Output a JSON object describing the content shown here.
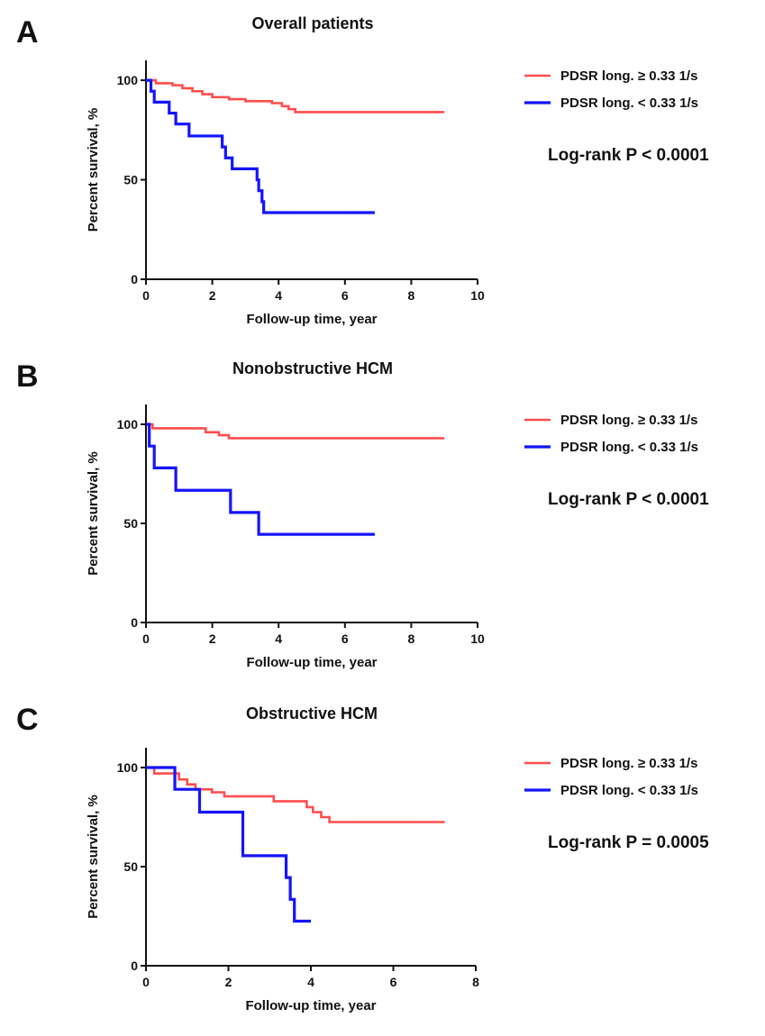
{
  "figure": {
    "colors": {
      "high": "#ff4d4d",
      "low": "#1414ff",
      "axis": "#111111"
    }
  },
  "chart_data": [
    {
      "panel": "A",
      "type": "line",
      "title": "Overall patients",
      "xlabel": "Follow-up time, year",
      "ylabel": "Percent survival, %",
      "xlim": [
        0,
        10
      ],
      "ylim": [
        0,
        110
      ],
      "xticks": [
        0,
        2,
        4,
        6,
        8,
        10
      ],
      "yticks": [
        0,
        50,
        100
      ],
      "legend": [
        "PDSR long. ≥ 0.33 1/s",
        "PDSR long. < 0.33 1/s"
      ],
      "annotation": "Log-rank P < 0.0001",
      "series": [
        {
          "name": "PDSR long. ≥ 0.33 1/s",
          "color": "#ff4d4d",
          "steps": [
            [
              0,
              100
            ],
            [
              0.3,
              98.5
            ],
            [
              0.8,
              97.5
            ],
            [
              1.1,
              96
            ],
            [
              1.4,
              94.5
            ],
            [
              1.7,
              93
            ],
            [
              2.0,
              91.5
            ],
            [
              2.5,
              90.5
            ],
            [
              3.0,
              89.5
            ],
            [
              3.8,
              88.5
            ],
            [
              4.1,
              87
            ],
            [
              4.3,
              85.5
            ],
            [
              4.5,
              84
            ],
            [
              9.0,
              84
            ]
          ]
        },
        {
          "name": "PDSR long. < 0.33 1/s",
          "color": "#1414ff",
          "steps": [
            [
              0,
              100
            ],
            [
              0.15,
              94.5
            ],
            [
              0.25,
              89
            ],
            [
              0.7,
              83.5
            ],
            [
              0.9,
              78
            ],
            [
              1.3,
              72
            ],
            [
              2.3,
              66.5
            ],
            [
              2.4,
              61
            ],
            [
              2.6,
              55.5
            ],
            [
              3.35,
              50
            ],
            [
              3.4,
              44.5
            ],
            [
              3.5,
              39
            ],
            [
              3.55,
              33.5
            ],
            [
              6.9,
              33.5
            ]
          ]
        }
      ]
    },
    {
      "panel": "B",
      "type": "line",
      "title": "Nonobstructive HCM",
      "xlabel": "Follow-up time, year",
      "ylabel": "Percent survival, %",
      "xlim": [
        0,
        10
      ],
      "ylim": [
        0,
        110
      ],
      "xticks": [
        0,
        2,
        4,
        6,
        8,
        10
      ],
      "yticks": [
        0,
        50,
        100
      ],
      "legend": [
        "PDSR long. ≥ 0.33 1/s",
        "PDSR long. < 0.33 1/s"
      ],
      "annotation": "Log-rank P < 0.0001",
      "series": [
        {
          "name": "PDSR long. ≥ 0.33 1/s",
          "color": "#ff4d4d",
          "steps": [
            [
              0,
              100
            ],
            [
              0.2,
              98
            ],
            [
              1.8,
              96
            ],
            [
              2.2,
              94.5
            ],
            [
              2.5,
              93
            ],
            [
              9.0,
              93
            ]
          ]
        },
        {
          "name": "PDSR long. < 0.33 1/s",
          "color": "#1414ff",
          "steps": [
            [
              0,
              100
            ],
            [
              0.1,
              89
            ],
            [
              0.25,
              78
            ],
            [
              0.9,
              66.7
            ],
            [
              2.55,
              55.5
            ],
            [
              3.4,
              44.5
            ],
            [
              6.9,
              44.5
            ]
          ]
        }
      ]
    },
    {
      "panel": "C",
      "type": "line",
      "title": "Obstructive HCM",
      "xlabel": "Follow-up time, year",
      "ylabel": "Percent survival, %",
      "xlim": [
        0,
        8
      ],
      "ylim": [
        0,
        110
      ],
      "xticks": [
        0,
        2,
        4,
        6,
        8
      ],
      "yticks": [
        0,
        50,
        100
      ],
      "legend": [
        "PDSR long. ≥ 0.33 1/s",
        "PDSR long. < 0.33 1/s"
      ],
      "annotation": "Log-rank P = 0.0005",
      "series": [
        {
          "name": "PDSR long. ≥ 0.33 1/s",
          "color": "#ff4d4d",
          "steps": [
            [
              0,
              100
            ],
            [
              0.2,
              97
            ],
            [
              0.8,
              94
            ],
            [
              1.0,
              91.5
            ],
            [
              1.2,
              89
            ],
            [
              1.6,
              87.5
            ],
            [
              1.9,
              85.5
            ],
            [
              3.1,
              83
            ],
            [
              3.9,
              80
            ],
            [
              4.05,
              77.5
            ],
            [
              4.25,
              75
            ],
            [
              4.45,
              72.5
            ],
            [
              7.25,
              72.5
            ]
          ]
        },
        {
          "name": "PDSR long. < 0.33 1/s",
          "color": "#1414ff",
          "steps": [
            [
              0,
              100
            ],
            [
              0.7,
              89
            ],
            [
              1.3,
              77.5
            ],
            [
              2.35,
              55.5
            ],
            [
              3.4,
              44.5
            ],
            [
              3.5,
              33.5
            ],
            [
              3.6,
              22.5
            ],
            [
              4.0,
              22.5
            ]
          ]
        }
      ]
    }
  ]
}
